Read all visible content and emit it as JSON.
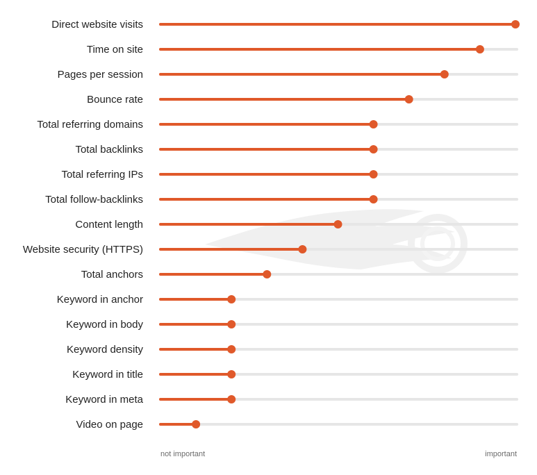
{
  "chart_data": {
    "type": "lollipop",
    "x_scale": "relative importance",
    "xlim": [
      0,
      100
    ],
    "x_min_label": "not important",
    "x_max_label": "important",
    "categories": [
      "Direct website visits",
      "Time on site",
      "Pages per session",
      "Bounce rate",
      "Total referring domains",
      "Total backlinks",
      "Total referring IPs",
      "Total follow-backlinks",
      "Content length",
      "Website security (HTTPS)",
      "Total anchors",
      "Keyword in anchor",
      "Keyword in body",
      "Keyword density",
      "Keyword in title",
      "Keyword in meta",
      "Video on page"
    ],
    "values": [
      100,
      90,
      80,
      70,
      60,
      60,
      60,
      60,
      50,
      40,
      30,
      20,
      20,
      20,
      20,
      20,
      10
    ],
    "grid": false,
    "legend": "none"
  },
  "colors": {
    "accent": "#e0592a",
    "track": "#e6e6e6",
    "watermark": "#f0f0f0"
  }
}
